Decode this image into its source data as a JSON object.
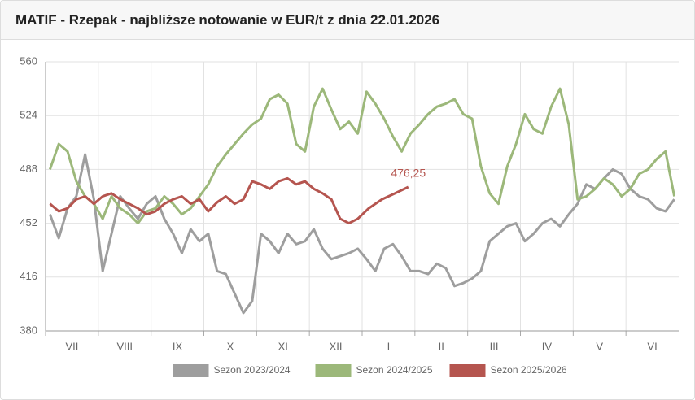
{
  "chart_data": {
    "type": "line",
    "title": "MATIF - Rzepak - najbliższe notowanie w EUR/t z dnia 22.01.2026",
    "categories": [
      "VII",
      "VIII",
      "IX",
      "X",
      "XI",
      "XII",
      "I",
      "II",
      "III",
      "IV",
      "V",
      "VI"
    ],
    "ylim": [
      380,
      560
    ],
    "yticks": [
      380,
      416,
      452,
      488,
      524,
      560
    ],
    "grid": true,
    "legend": "bottom",
    "annotation": {
      "value": 476.25,
      "label": "476,25"
    },
    "series": [
      {
        "name": "Sezon 2023/2024",
        "color": "#9e9e9e",
        "values": [
          [
            458,
            442,
            462,
            470,
            498,
            468
          ],
          [
            420,
            445,
            470,
            462,
            455,
            465
          ],
          [
            470,
            455,
            445,
            432,
            448,
            440
          ],
          [
            445,
            420,
            418,
            405,
            392,
            400
          ],
          [
            445,
            440,
            432,
            445,
            438,
            440
          ],
          [
            448,
            435,
            428,
            430,
            432,
            435
          ],
          [
            428,
            420,
            435,
            438,
            430,
            420
          ],
          [
            420,
            418,
            425,
            422,
            410,
            412
          ],
          [
            415,
            420,
            440,
            445,
            450,
            452
          ],
          [
            440,
            445,
            452,
            455,
            450,
            458
          ],
          [
            465,
            478,
            475,
            482,
            488,
            485
          ],
          [
            475,
            470,
            468,
            462,
            460,
            468
          ]
        ]
      },
      {
        "name": "Sezon 2024/2025",
        "color": "#9cb87a",
        "values": [
          [
            488,
            505,
            500,
            480,
            470,
            465
          ],
          [
            455,
            470,
            462,
            458,
            452,
            460
          ],
          [
            462,
            470,
            465,
            458,
            462,
            470
          ],
          [
            478,
            490,
            498,
            505,
            512,
            518
          ],
          [
            522,
            535,
            538,
            532,
            505,
            500
          ],
          [
            530,
            542,
            528,
            515,
            520,
            512
          ],
          [
            540,
            532,
            522,
            510,
            500,
            512
          ],
          [
            518,
            525,
            530,
            532,
            535,
            525
          ],
          [
            522,
            490,
            472,
            465,
            490,
            505
          ],
          [
            525,
            515,
            512,
            530,
            542,
            518
          ],
          [
            468,
            470,
            475,
            482,
            478,
            470
          ],
          [
            475,
            485,
            488,
            495,
            500,
            470
          ]
        ]
      },
      {
        "name": "Sezon 2025/2026",
        "color": "#b5554f",
        "values": [
          [
            465,
            460,
            462,
            468,
            470,
            465
          ],
          [
            470,
            472,
            468,
            465,
            462,
            458
          ],
          [
            460,
            465,
            468,
            470,
            465,
            468
          ],
          [
            460,
            466,
            470,
            465,
            468,
            480
          ],
          [
            478,
            475,
            480,
            482,
            478,
            480
          ],
          [
            475,
            472,
            468,
            455,
            452,
            455
          ],
          [
            462,
            468,
            472,
            476.25
          ],
          null,
          null,
          null,
          null,
          null
        ]
      }
    ]
  }
}
